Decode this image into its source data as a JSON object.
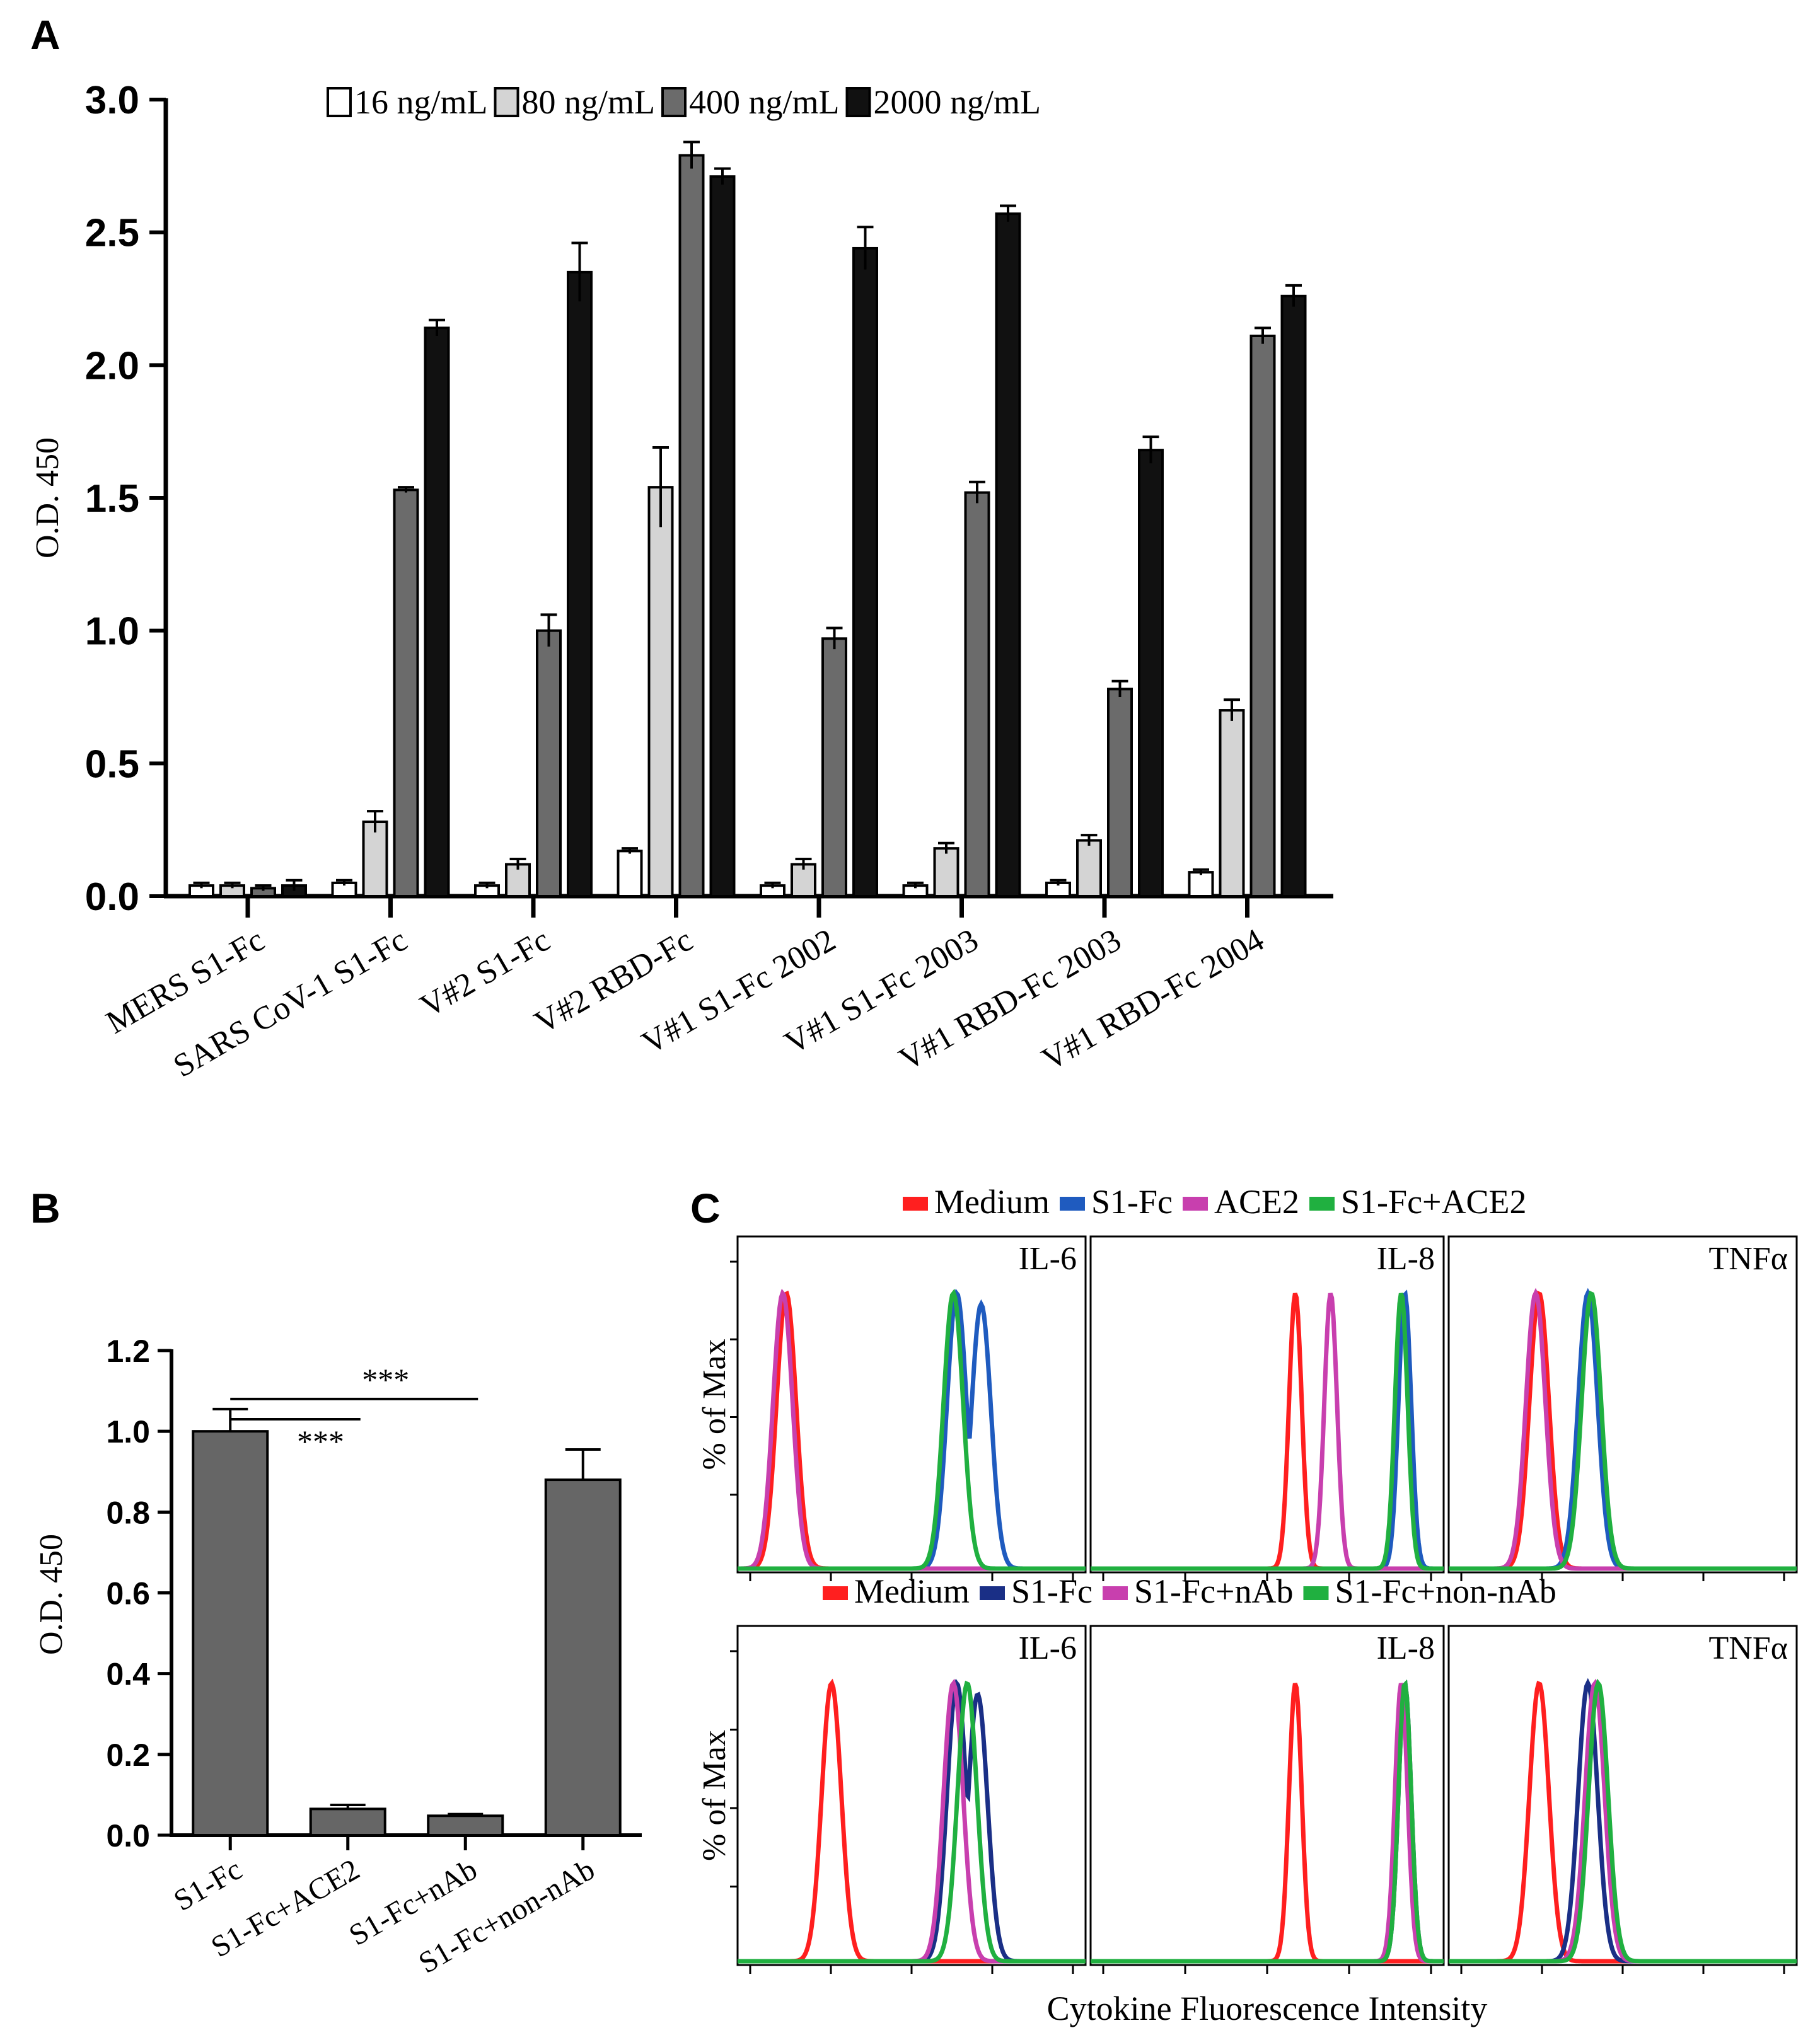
{
  "panels": {
    "a": {
      "label": "A"
    },
    "b": {
      "label": "B"
    },
    "c": {
      "label": "C"
    }
  },
  "chart_data": [
    {
      "id": "A",
      "type": "bar",
      "title": "",
      "xlabel": "",
      "ylabel": "O.D. 450",
      "ylim": [
        0,
        3.0
      ],
      "yticks": [
        "0.0",
        "0.5",
        "1.0",
        "1.5",
        "2.0",
        "2.5",
        "3.0"
      ],
      "categories": [
        "MERS S1-Fc",
        "SARS CoV-1 S1-Fc",
        "V#2 S1-Fc",
        "V#2 RBD-Fc",
        "V#1 S1-Fc 2002",
        "V#1 S1-Fc 2003",
        "V#1 RBD-Fc 2003",
        "V#1 RBD-Fc 2004"
      ],
      "legend_position": "top",
      "series": [
        {
          "name": "16 ng/mL",
          "color": "#ffffff",
          "values": [
            0.04,
            0.05,
            0.04,
            0.17,
            0.04,
            0.04,
            0.05,
            0.09
          ],
          "errors": [
            0.01,
            0.01,
            0.01,
            0.01,
            0.01,
            0.01,
            0.01,
            0.01
          ]
        },
        {
          "name": "80 ng/mL",
          "color": "#d4d4d4",
          "values": [
            0.04,
            0.28,
            0.12,
            1.54,
            0.12,
            0.18,
            0.21,
            0.7
          ],
          "errors": [
            0.01,
            0.04,
            0.02,
            0.15,
            0.02,
            0.02,
            0.02,
            0.04
          ]
        },
        {
          "name": "400 ng/mL",
          "color": "#6b6b6b",
          "values": [
            0.03,
            1.53,
            1.0,
            2.79,
            0.97,
            1.52,
            0.78,
            2.11
          ],
          "errors": [
            0.01,
            0.01,
            0.06,
            0.05,
            0.04,
            0.04,
            0.03,
            0.03
          ]
        },
        {
          "name": "2000 ng/mL",
          "color": "#111111",
          "values": [
            0.04,
            2.14,
            2.35,
            2.71,
            2.44,
            2.57,
            1.68,
            2.26
          ],
          "errors": [
            0.02,
            0.03,
            0.11,
            0.03,
            0.08,
            0.03,
            0.05,
            0.04
          ]
        }
      ]
    },
    {
      "id": "B",
      "type": "bar",
      "title": "",
      "xlabel": "",
      "ylabel": "O.D. 450",
      "ylim": [
        0,
        1.2
      ],
      "yticks": [
        "0.0",
        "0.2",
        "0.4",
        "0.6",
        "0.8",
        "1.0",
        "1.2"
      ],
      "categories": [
        "S1-Fc",
        "S1-Fc+ACE2",
        "S1-Fc+nAb",
        "S1-Fc+non-nAb"
      ],
      "values": [
        1.0,
        0.065,
        0.048,
        0.88
      ],
      "errors": [
        0.055,
        0.01,
        0.004,
        0.075
      ],
      "bar_color": "#666666",
      "annotations": [
        {
          "text": "***",
          "from": "S1-Fc",
          "to": "S1-Fc+ACE2"
        },
        {
          "text": "***",
          "from": "S1-Fc",
          "to": "S1-Fc+nAb"
        }
      ]
    },
    {
      "id": "C",
      "type": "line",
      "title": "",
      "xlabel": "Cytokine Fluorescence Intensity",
      "ylabel": "% of Max",
      "rows": [
        {
          "legend": [
            {
              "name": "Medium",
              "color": "#ff1f1f"
            },
            {
              "name": "S1-Fc",
              "color": "#1f5bbf"
            },
            {
              "name": "ACE2",
              "color": "#c83fae"
            },
            {
              "name": "S1-Fc+ACE2",
              "color": "#20b040"
            }
          ],
          "panels": [
            {
              "title": "IL-6",
              "peaks": [
                [
                  0.14
                ],
                [
                  0.63,
                  0.7
                ],
                [
                  0.13
                ],
                [
                  0.62
                ]
              ]
            },
            {
              "title": "IL-8",
              "peaks": [
                [
                  0.58
                ],
                [
                  0.89
                ],
                [
                  0.68
                ],
                [
                  0.88
                ]
              ]
            },
            {
              "title": "TNFα",
              "peaks": [
                [
                  0.26
                ],
                [
                  0.4
                ],
                [
                  0.25
                ],
                [
                  0.41
                ]
              ]
            }
          ]
        },
        {
          "legend": [
            {
              "name": "Medium",
              "color": "#ff1f1f"
            },
            {
              "name": "S1-Fc",
              "color": "#1a2f86"
            },
            {
              "name": "S1-Fc+nAb",
              "color": "#c83fae"
            },
            {
              "name": "S1-Fc+non-nAb",
              "color": "#20b040"
            }
          ],
          "panels": [
            {
              "title": "IL-6",
              "peaks": [
                [
                  0.27
                ],
                [
                  0.63,
                  0.69
                ],
                [
                  0.62
                ],
                [
                  0.66
                ]
              ]
            },
            {
              "title": "IL-8",
              "peaks": [
                [
                  0.58
                ],
                [
                  0.89
                ],
                [
                  0.88
                ],
                [
                  0.89
                ]
              ]
            },
            {
              "title": "TNFα",
              "peaks": [
                [
                  0.26
                ],
                [
                  0.4
                ],
                [
                  0.42
                ],
                [
                  0.43
                ]
              ]
            }
          ]
        }
      ]
    }
  ]
}
